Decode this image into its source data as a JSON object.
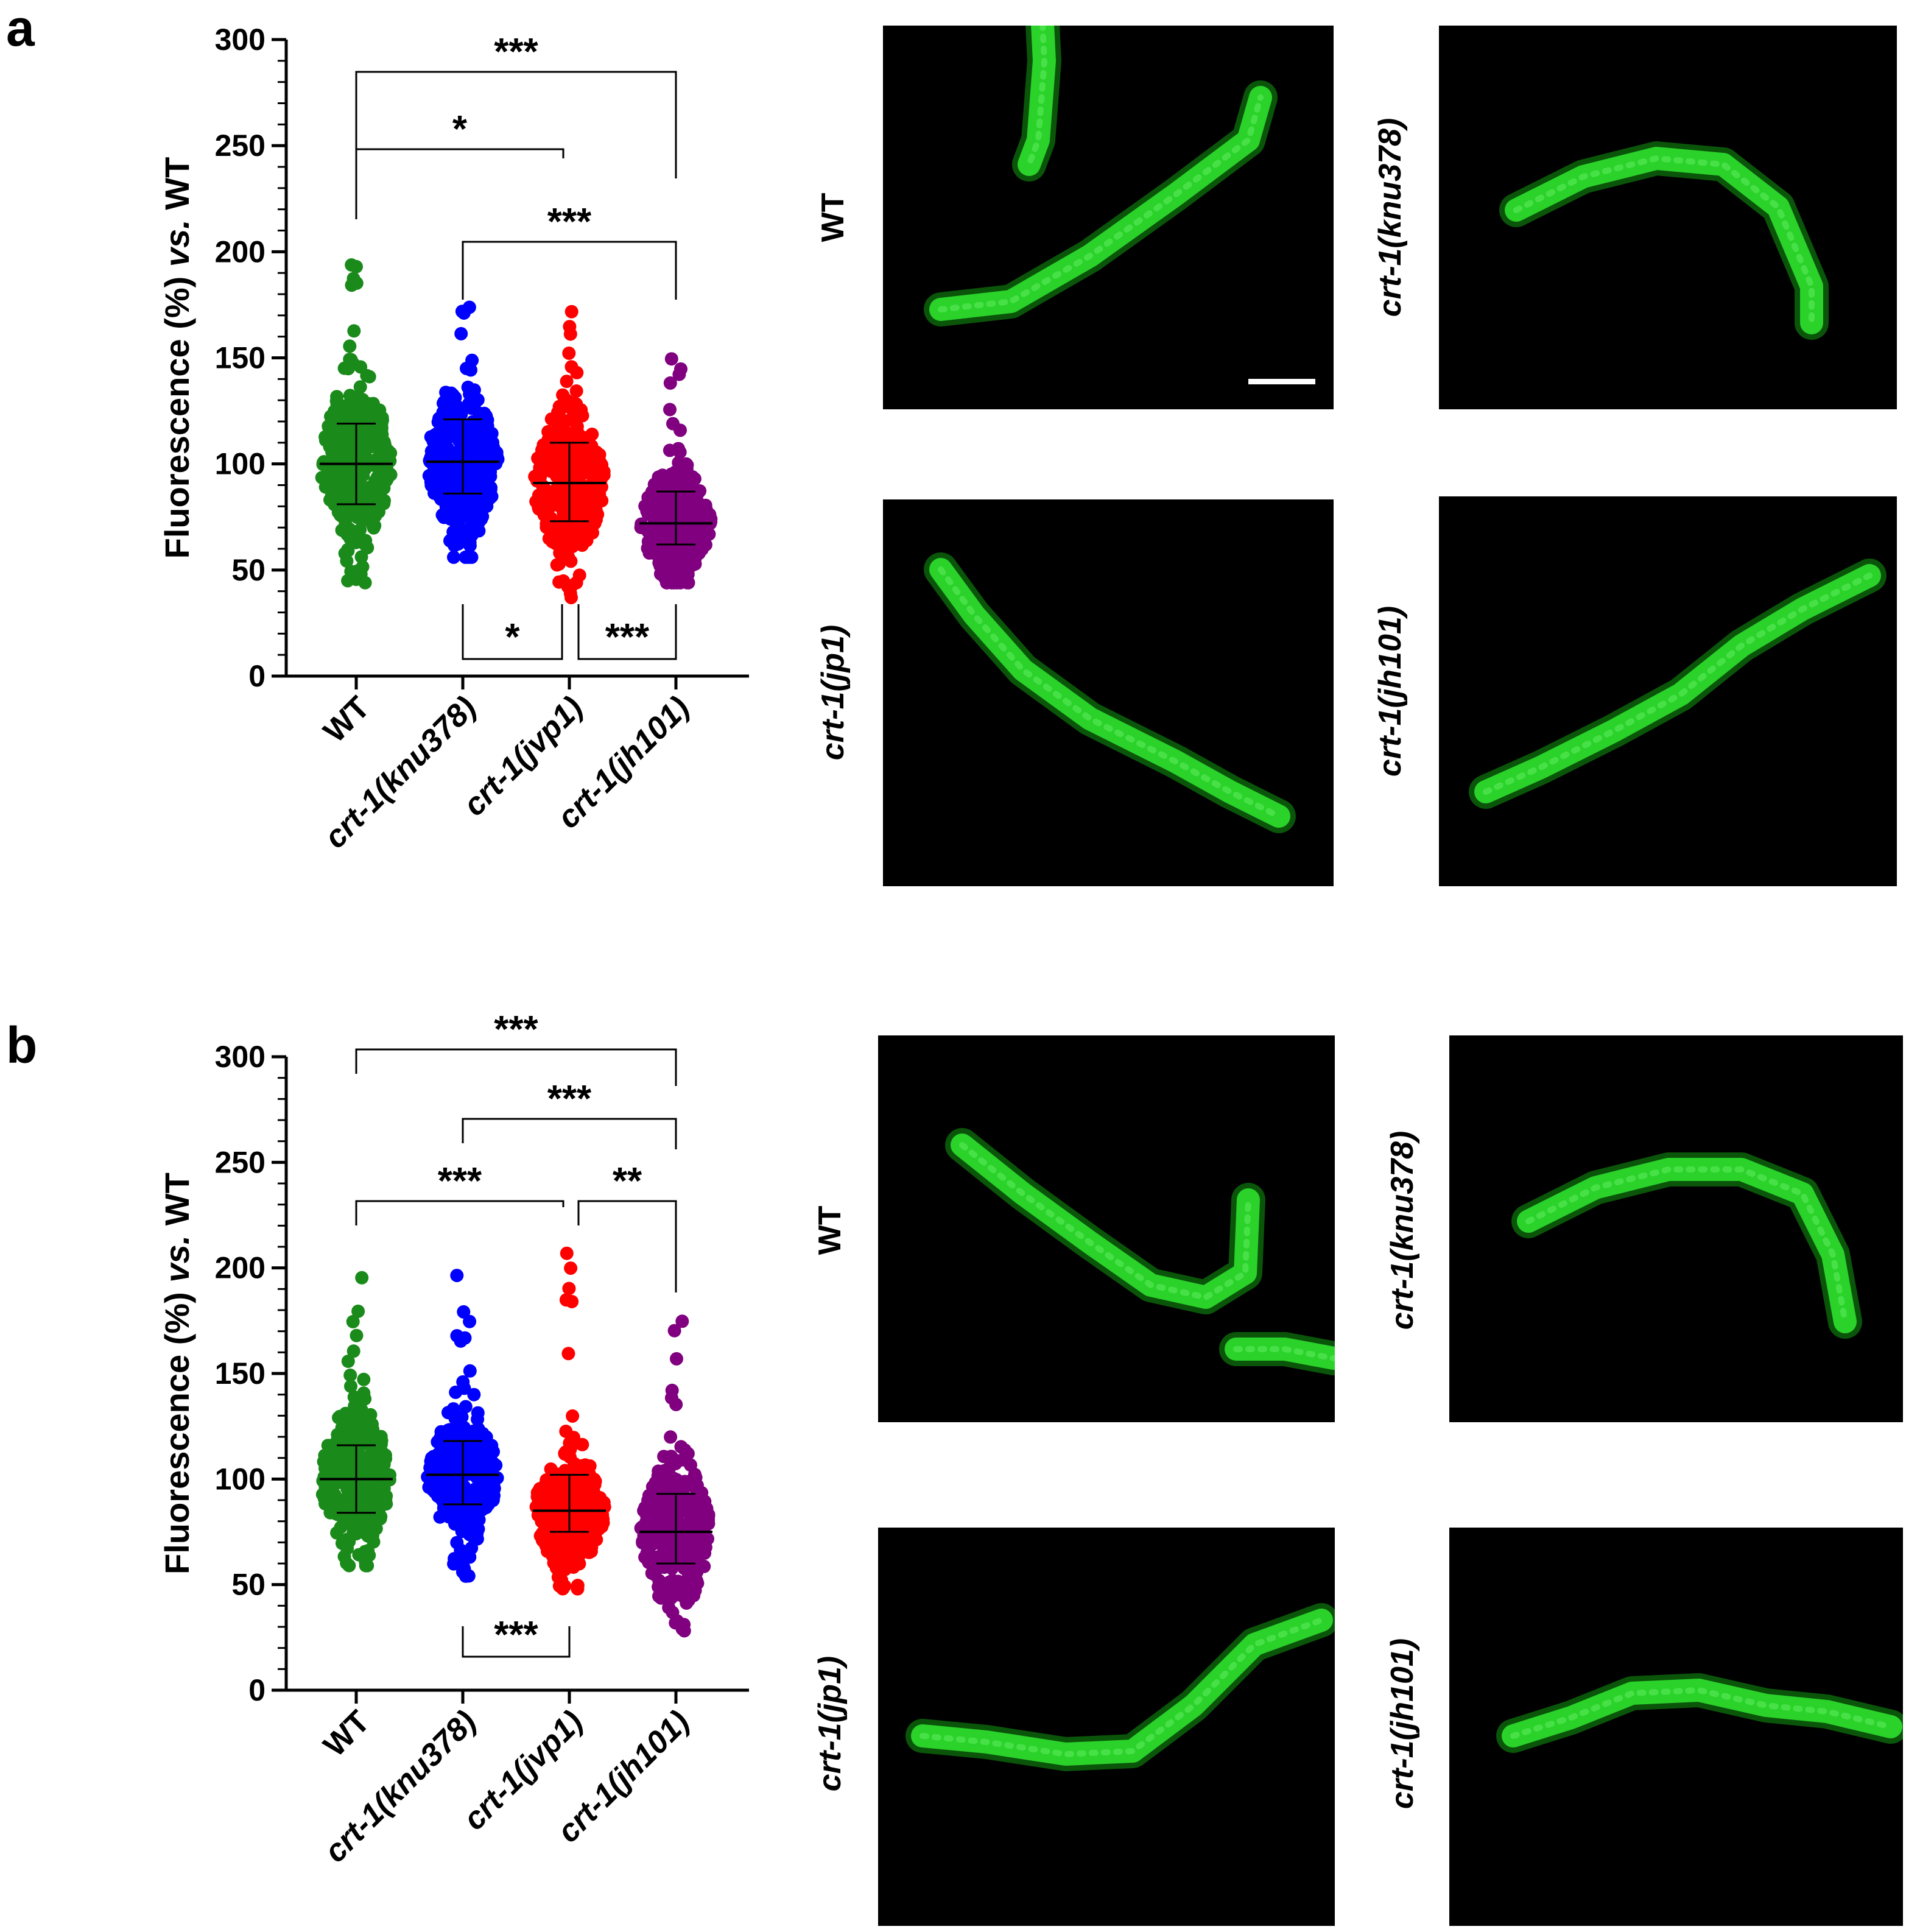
{
  "panels": [
    {
      "letter": "a",
      "chart_data": {
        "type": "scatter",
        "subtype": "dot-plot with mean and SD",
        "categories": [
          "WT",
          "crt-1(knu378)",
          "crt-1(jvp1)",
          "crt-1(jh101)"
        ],
        "category_labels": [
          {
            "prefix": "WT",
            "italic": ""
          },
          {
            "prefix": "crt-1(",
            "italic": "knu378",
            "suffix": ")"
          },
          {
            "prefix": "crt-1(",
            "italic": "jvp1",
            "suffix": ")"
          },
          {
            "prefix": "crt-1(",
            "italic": "jh101",
            "suffix": ")"
          }
        ],
        "ylabel": {
          "pre": "Fluorescence (%) ",
          "italic": "vs.",
          "post": " WT"
        },
        "ylim": [
          0,
          300
        ],
        "yticks": [
          0,
          50,
          100,
          150,
          200,
          250,
          300
        ],
        "series": [
          {
            "name": "WT",
            "color": "#1a8a1a",
            "mean": 100,
            "sd_low": 81,
            "sd_high": 119,
            "min": 44,
            "max": 195
          },
          {
            "name": "crt-1(knu378)",
            "color": "#0000ff",
            "mean": 101,
            "sd_low": 86,
            "sd_high": 121,
            "min": 56,
            "max": 175
          },
          {
            "name": "crt-1(jvp1)",
            "color": "#ff0000",
            "mean": 91,
            "sd_low": 73,
            "sd_high": 110,
            "min": 37,
            "max": 180
          },
          {
            "name": "crt-1(jh101)",
            "color": "#800080",
            "mean": 72,
            "sd_low": 62,
            "sd_high": 87,
            "min": 44,
            "max": 153
          }
        ],
        "significance": [
          {
            "from": 0,
            "to": 3,
            "label": "***",
            "position": "top"
          },
          {
            "from": 0,
            "to": 2,
            "label": "*",
            "position": "top"
          },
          {
            "from": 1,
            "to": 3,
            "label": "***",
            "position": "top"
          },
          {
            "from": 1,
            "to": 2,
            "label": "*",
            "position": "bottom"
          },
          {
            "from": 2,
            "to": 3,
            "label": "***",
            "position": "bottom"
          }
        ]
      },
      "images": [
        {
          "label": "WT",
          "italic": "",
          "has_scale_bar": true
        },
        {
          "label": "crt-1(",
          "italic": "knu378",
          "suffix": ")"
        },
        {
          "label": "crt-1(",
          "italic": "jp1",
          "suffix": ")"
        },
        {
          "label": "crt-1(",
          "italic": "jh101",
          "suffix": ")"
        }
      ]
    },
    {
      "letter": "b",
      "chart_data": {
        "type": "scatter",
        "subtype": "dot-plot with mean and SD",
        "categories": [
          "WT",
          "crt-1(knu378)",
          "crt-1(jvp1)",
          "crt-1(jh101)"
        ],
        "category_labels": [
          {
            "prefix": "WT",
            "italic": ""
          },
          {
            "prefix": "crt-1(",
            "italic": "knu378",
            "suffix": ")"
          },
          {
            "prefix": "crt-1(",
            "italic": "jvp1",
            "suffix": ")"
          },
          {
            "prefix": "crt-1(",
            "italic": "jh101",
            "suffix": ")"
          }
        ],
        "ylabel": {
          "pre": "Fluorescence (%) ",
          "italic": "vs.",
          "post": " WT"
        },
        "ylim": [
          0,
          300
        ],
        "yticks": [
          0,
          50,
          100,
          150,
          200,
          250,
          300
        ],
        "series": [
          {
            "name": "WT",
            "color": "#1a8a1a",
            "mean": 100,
            "sd_low": 84,
            "sd_high": 116,
            "min": 59,
            "max": 210
          },
          {
            "name": "crt-1(knu378)",
            "color": "#0000ff",
            "mean": 102,
            "sd_low": 88,
            "sd_high": 118,
            "min": 54,
            "max": 200
          },
          {
            "name": "crt-1(jvp1)",
            "color": "#ff0000",
            "mean": 85,
            "sd_low": 75,
            "sd_high": 102,
            "min": 48,
            "max": 210
          },
          {
            "name": "crt-1(jh101)",
            "color": "#800080",
            "mean": 75,
            "sd_low": 60,
            "sd_high": 93,
            "min": 25,
            "max": 180
          }
        ],
        "significance": [
          {
            "from": 0,
            "to": 3,
            "label": "***",
            "position": "top"
          },
          {
            "from": 1,
            "to": 3,
            "label": "***",
            "position": "top"
          },
          {
            "from": 0,
            "to": 2,
            "label": "***",
            "position": "top"
          },
          {
            "from": 2,
            "to": 3,
            "label": "**",
            "position": "top"
          },
          {
            "from": 1,
            "to": 2,
            "label": "***",
            "position": "bottom"
          }
        ]
      },
      "images": [
        {
          "label": "WT",
          "italic": ""
        },
        {
          "label": "crt-1(",
          "italic": "knu378",
          "suffix": ")"
        },
        {
          "label": "crt-1(",
          "italic": "jp1",
          "suffix": ")"
        },
        {
          "label": "crt-1(",
          "italic": "jh101",
          "suffix": ")"
        }
      ]
    }
  ],
  "colors": {
    "worm": "#2ee02e",
    "image_bg": "#000000",
    "axis": "#000000"
  }
}
